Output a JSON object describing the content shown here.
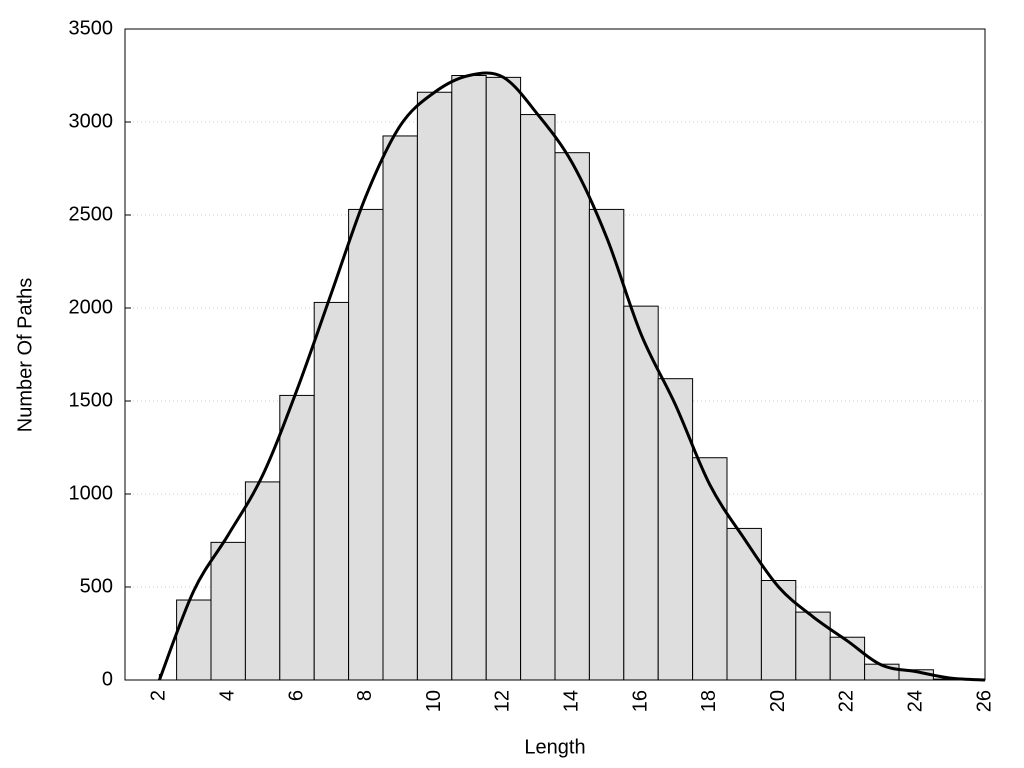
{
  "chart_data": {
    "type": "histogram",
    "xlabel": "Length",
    "ylabel": "Number Of Paths",
    "bins": [
      2.5,
      3.5,
      4.5,
      5.5,
      6.5,
      7.5,
      8.5,
      9.5,
      10.5,
      11.5,
      12.5,
      13.5,
      14.5,
      15.5,
      16.5,
      17.5,
      18.5,
      19.5,
      20.5,
      21.5,
      22.5,
      23.5,
      24.5,
      25.5
    ],
    "values": [
      430,
      740,
      1065,
      1530,
      2030,
      2530,
      2925,
      3160,
      3250,
      3240,
      3040,
      2835,
      2530,
      2010,
      1620,
      1195,
      815,
      535,
      365,
      230,
      85,
      55,
      5
    ],
    "color": "#dedede",
    "line": {
      "color": "#000000",
      "x": [
        2,
        3,
        4,
        5,
        6,
        7,
        8,
        9,
        10,
        11,
        12,
        13,
        14,
        15,
        16,
        17,
        18,
        19,
        20,
        21,
        22,
        23,
        24,
        25,
        26
      ],
      "values": [
        0,
        480,
        780,
        1100,
        1560,
        2080,
        2600,
        2980,
        3160,
        3250,
        3240,
        3040,
        2780,
        2380,
        1860,
        1480,
        1050,
        760,
        500,
        340,
        210,
        80,
        45,
        10,
        0
      ]
    },
    "xlim": [
      1,
      26
    ],
    "ylim": [
      0,
      3500
    ],
    "xticks": [
      2,
      4,
      6,
      8,
      10,
      12,
      14,
      16,
      18,
      20,
      22,
      24,
      26
    ],
    "yticks": [
      0,
      500,
      1000,
      1500,
      2000,
      2500,
      3000,
      3500
    ],
    "grid": true
  }
}
